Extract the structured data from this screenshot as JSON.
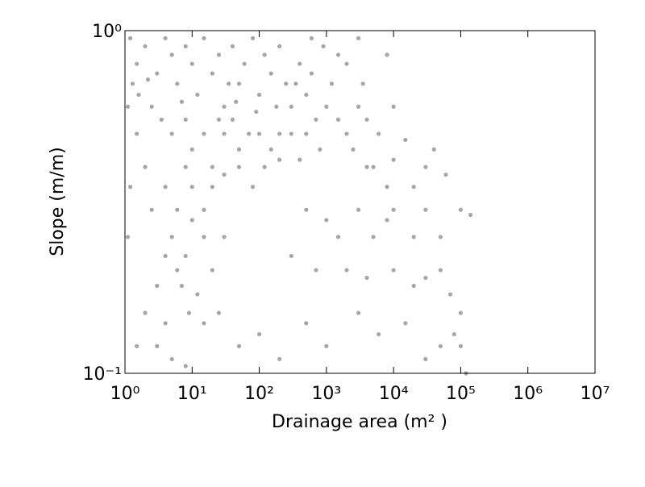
{
  "chart_data": {
    "type": "scatter",
    "xlabel": "Drainage area (m² )",
    "ylabel": "Slope (m/m)",
    "xscale": "log",
    "yscale": "log",
    "xlim": [
      1,
      10000000
    ],
    "ylim": [
      0.1,
      1
    ],
    "xticks": [
      {
        "value": 1,
        "label": "10⁰"
      },
      {
        "value": 10,
        "label": "10¹"
      },
      {
        "value": 100,
        "label": "10²"
      },
      {
        "value": 1000,
        "label": "10³"
      },
      {
        "value": 10000,
        "label": "10⁴"
      },
      {
        "value": 100000,
        "label": "10⁵"
      },
      {
        "value": 1000000,
        "label": "10⁶"
      },
      {
        "value": 10000000,
        "label": "10⁷"
      }
    ],
    "yticks": [
      {
        "value": 0.1,
        "label": "10⁻¹"
      },
      {
        "value": 1,
        "label": "10⁰"
      }
    ],
    "series": [
      {
        "color": "#808080",
        "x": [
          1.2,
          1.5,
          2,
          1.3,
          2.5,
          3,
          4,
          5,
          6,
          8,
          10,
          12,
          15,
          20,
          25,
          30,
          40,
          50,
          60,
          80,
          100,
          120,
          150,
          200,
          250,
          300,
          400,
          500,
          700,
          1000,
          5,
          8,
          10,
          15,
          20,
          30,
          40,
          50,
          70,
          100,
          150,
          200,
          300,
          500,
          800,
          1500,
          2000,
          3000,
          4,
          6,
          8,
          10,
          15,
          20,
          30,
          50,
          80,
          120,
          200,
          400,
          5,
          8,
          10,
          15,
          20,
          30,
          6,
          7,
          4,
          12,
          9,
          15,
          25,
          3,
          2.5,
          2,
          1.5,
          1.2,
          1.1,
          2,
          3,
          5,
          8,
          1.5,
          4,
          1.1,
          1.6,
          2.2,
          3.5,
          7,
          25,
          35,
          45,
          90,
          180,
          350,
          600,
          1200,
          2500,
          4000,
          5000,
          2000,
          3500,
          6000,
          10000,
          15000,
          20000,
          30000,
          40000,
          60000,
          100000,
          140000,
          3000,
          8000,
          5000,
          10000,
          20000,
          500,
          1000,
          1500,
          300,
          700,
          2000,
          4000,
          10000,
          20000,
          30000,
          50000,
          70000,
          100000,
          80000,
          50000,
          30000,
          15000,
          6000,
          3000,
          1000,
          500,
          200,
          100,
          50,
          30000,
          50000,
          100000,
          120000,
          8000,
          4000,
          600,
          900,
          1500,
          3000,
          10000,
          8000
        ],
        "values": [
          0.95,
          0.8,
          0.9,
          0.7,
          0.6,
          0.75,
          0.95,
          0.85,
          0.7,
          0.9,
          0.8,
          0.65,
          0.95,
          0.75,
          0.85,
          0.6,
          0.9,
          0.7,
          0.8,
          0.95,
          0.65,
          0.85,
          0.75,
          0.9,
          0.7,
          0.6,
          0.8,
          0.65,
          0.55,
          0.6,
          0.5,
          0.55,
          0.45,
          0.5,
          0.4,
          0.5,
          0.55,
          0.45,
          0.5,
          0.5,
          0.45,
          0.5,
          0.5,
          0.5,
          0.45,
          0.55,
          0.5,
          0.6,
          0.35,
          0.3,
          0.4,
          0.35,
          0.3,
          0.35,
          0.38,
          0.4,
          0.35,
          0.4,
          0.42,
          0.42,
          0.25,
          0.22,
          0.28,
          0.25,
          0.2,
          0.25,
          0.2,
          0.18,
          0.22,
          0.17,
          0.15,
          0.14,
          0.15,
          0.18,
          0.3,
          0.4,
          0.5,
          0.35,
          0.25,
          0.15,
          0.12,
          0.11,
          0.105,
          0.12,
          0.14,
          0.6,
          0.65,
          0.72,
          0.55,
          0.62,
          0.55,
          0.7,
          0.62,
          0.58,
          0.6,
          0.7,
          0.75,
          0.7,
          0.45,
          0.55,
          0.4,
          0.8,
          0.7,
          0.5,
          0.42,
          0.48,
          0.35,
          0.4,
          0.45,
          0.38,
          0.3,
          0.29,
          0.3,
          0.28,
          0.25,
          0.3,
          0.25,
          0.3,
          0.28,
          0.25,
          0.22,
          0.2,
          0.2,
          0.19,
          0.2,
          0.18,
          0.19,
          0.2,
          0.17,
          0.15,
          0.13,
          0.12,
          0.11,
          0.14,
          0.13,
          0.15,
          0.12,
          0.14,
          0.11,
          0.13,
          0.12,
          0.3,
          0.25,
          0.12,
          0.1,
          0.35,
          0.4,
          0.95,
          0.9,
          0.85,
          0.95,
          0.6,
          0.85
        ]
      }
    ]
  }
}
